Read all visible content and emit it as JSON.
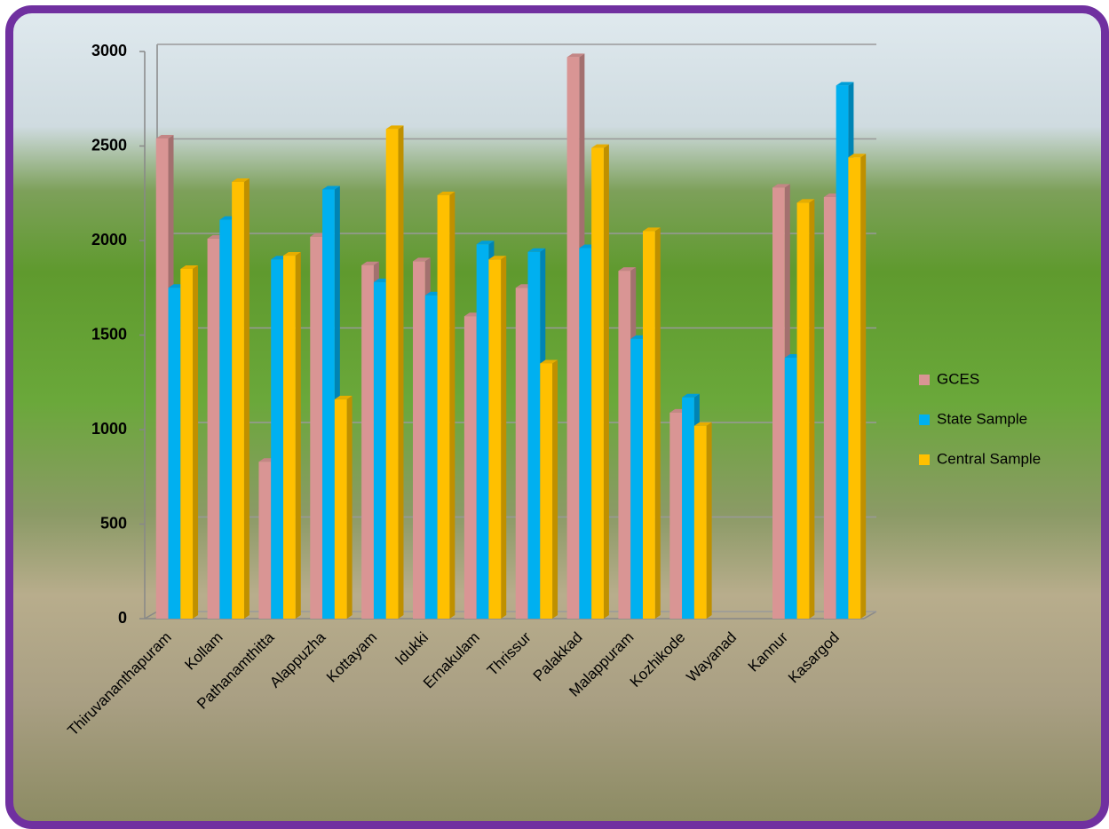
{
  "chart_data": {
    "type": "bar",
    "categories": [
      "Thiruvananthapuram",
      "Kollam",
      "Pathanamthitta",
      "Alappuzha",
      "Kottayam",
      "Idukki",
      "Ernakulam",
      "Thrissur",
      "Palakkad",
      "Malappuram",
      "Kozhikode",
      "Wayanad",
      "Kannur",
      "Kasargod"
    ],
    "series": [
      {
        "name": "GCES",
        "color": "#d99594",
        "values": [
          2540,
          2010,
          830,
          2020,
          1870,
          1890,
          1600,
          1750,
          2970,
          1840,
          1090,
          null,
          2280,
          2230
        ]
      },
      {
        "name": "State Sample",
        "color": "#00b0f0",
        "values": [
          1750,
          2110,
          1900,
          2270,
          1780,
          1710,
          1980,
          1940,
          1960,
          1480,
          1170,
          null,
          1380,
          2820
        ]
      },
      {
        "name": "Central Sample",
        "color": "#ffc000",
        "values": [
          1850,
          2310,
          1920,
          1160,
          2590,
          2240,
          1900,
          1350,
          2490,
          2050,
          1020,
          null,
          2200,
          2440
        ]
      }
    ],
    "ylim": [
      0,
      3000
    ],
    "yticks": [
      0,
      500,
      1000,
      1500,
      2000,
      2500,
      3000
    ],
    "grid": true,
    "legend": "right"
  }
}
